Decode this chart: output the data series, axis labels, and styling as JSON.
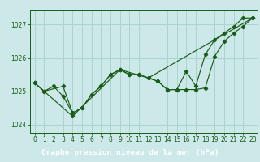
{
  "title": "",
  "xlabel": "Graphe pression niveau de la mer (hPa)",
  "background_color": "#cce8e8",
  "grid_color": "#aad4d0",
  "line_color": "#1a5c1a",
  "xlim": [
    -0.5,
    23.5
  ],
  "ylim": [
    1023.75,
    1027.45
  ],
  "yticks": [
    1024,
    1025,
    1026,
    1027
  ],
  "xticks": [
    0,
    1,
    2,
    3,
    4,
    5,
    6,
    7,
    8,
    9,
    10,
    11,
    12,
    13,
    14,
    15,
    16,
    17,
    18,
    19,
    20,
    21,
    22,
    23
  ],
  "line1_x": [
    0,
    1,
    2,
    3,
    4,
    5,
    6,
    7,
    8,
    9,
    10,
    11,
    12,
    13,
    14,
    15,
    16,
    17,
    18,
    19,
    20,
    21,
    22,
    23
  ],
  "line1_y": [
    1025.25,
    1025.0,
    1025.15,
    1024.85,
    1024.35,
    1024.5,
    1024.9,
    1025.15,
    1025.5,
    1025.65,
    1025.5,
    1025.5,
    1025.4,
    1025.3,
    1025.05,
    1025.05,
    1025.05,
    1025.05,
    1025.1,
    1026.05,
    1026.5,
    1026.75,
    1026.95,
    1027.2
  ],
  "line2_x": [
    0,
    4,
    9,
    12,
    23
  ],
  "line2_y": [
    1025.25,
    1024.25,
    1025.65,
    1025.4,
    1027.2
  ],
  "line3_x": [
    0,
    1,
    3,
    4,
    5,
    6,
    7,
    8,
    9,
    10,
    11,
    12,
    13,
    14,
    15,
    16,
    17,
    18,
    19,
    20,
    21,
    22,
    23
  ],
  "line3_y": [
    1025.25,
    1025.0,
    1025.15,
    1024.35,
    1024.5,
    1024.9,
    1025.15,
    1025.5,
    1025.65,
    1025.5,
    1025.5,
    1025.4,
    1025.3,
    1025.05,
    1025.05,
    1025.6,
    1025.15,
    1026.1,
    1026.55,
    1026.75,
    1026.95,
    1027.2,
    1027.2
  ],
  "tick_fontsize": 5.5,
  "xlabel_fontsize": 6.8,
  "xlabel_bg": "#2d6e2d",
  "xlabel_fg": "#ffffff"
}
